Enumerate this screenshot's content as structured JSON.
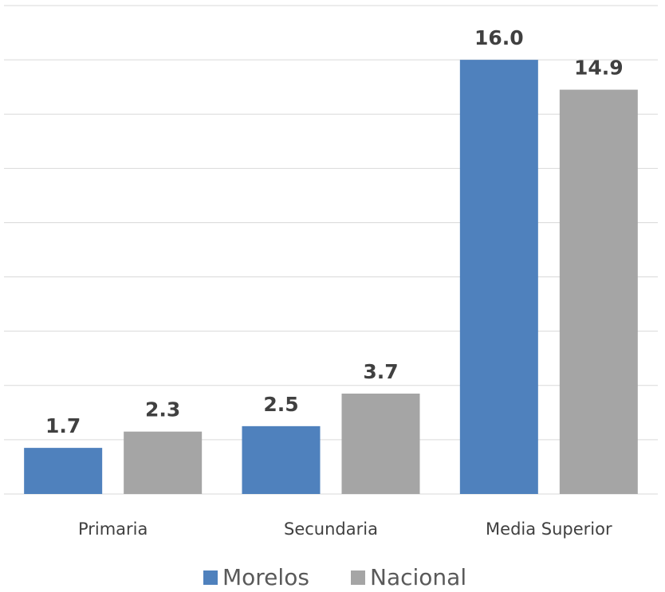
{
  "chart_data": {
    "type": "bar",
    "categories": [
      "Primaria",
      "Secundaria",
      "Media Superior"
    ],
    "series": [
      {
        "name": "Morelos",
        "color": "#4f81bd",
        "values": [
          1.7,
          2.5,
          16.0
        ],
        "value_labels": [
          "1.7",
          "2.5",
          "16.0"
        ]
      },
      {
        "name": "Nacional",
        "color": "#a5a5a5",
        "values": [
          2.3,
          3.7,
          14.9
        ],
        "value_labels": [
          "2.3",
          "3.7",
          "14.9"
        ]
      }
    ],
    "ylim": [
      0,
      18
    ],
    "yticks": [
      0,
      2,
      4,
      6,
      8,
      10,
      12,
      14,
      16,
      18
    ],
    "grid": true,
    "legend": "bottom"
  }
}
